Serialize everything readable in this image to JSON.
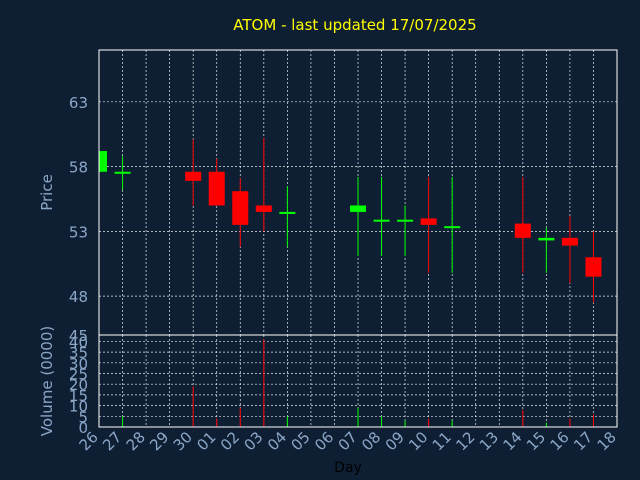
{
  "chart_data": {
    "type": "candlestick",
    "title": "ATOM - last updated 17/07/2025",
    "xlabel": "Day",
    "price_panel": {
      "ylabel": "Price",
      "yticks": [
        45,
        48,
        53,
        58,
        63
      ],
      "ylim": [
        45,
        67
      ],
      "grid": true
    },
    "volume_panel": {
      "ylabel": "Volume (0000)",
      "yticks": [
        0,
        5,
        10,
        15,
        20,
        25,
        30,
        35,
        40
      ],
      "ylim": [
        0,
        43
      ],
      "grid": true
    },
    "x_tick_labels": [
      "26",
      "27",
      "28",
      "29",
      "30",
      "01",
      "02",
      "03",
      "04",
      "05",
      "06",
      "07",
      "08",
      "09",
      "10",
      "11",
      "12",
      "13",
      "14",
      "15",
      "16",
      "17",
      "18"
    ],
    "candles": [
      {
        "day": "26",
        "open": 57.6,
        "close": 59.2,
        "high": 59.2,
        "low": 57.6,
        "volume": 0
      },
      {
        "day": "27",
        "open": 57.5,
        "close": 57.6,
        "high": 58.8,
        "low": 56.2,
        "volume": 5
      },
      {
        "day": "30",
        "open": 57.6,
        "close": 56.9,
        "high": 60.1,
        "low": 55.0,
        "volume": 19
      },
      {
        "day": "01",
        "open": 57.6,
        "close": 55.0,
        "high": 58.6,
        "low": 55.0,
        "volume": 4
      },
      {
        "day": "02",
        "open": 56.1,
        "close": 53.5,
        "high": 57.1,
        "low": 51.8,
        "volume": 9
      },
      {
        "day": "03",
        "open": 55.0,
        "close": 54.5,
        "high": 60.2,
        "low": 53.0,
        "volume": 41
      },
      {
        "day": "04",
        "open": 54.4,
        "close": 54.5,
        "high": 56.5,
        "low": 51.8,
        "volume": 5
      },
      {
        "day": "07",
        "open": 54.5,
        "close": 55.0,
        "high": 57.2,
        "low": 51.1,
        "volume": 9
      },
      {
        "day": "08",
        "open": 53.8,
        "close": 53.9,
        "high": 57.2,
        "low": 51.1,
        "volume": 5
      },
      {
        "day": "09",
        "open": 53.8,
        "close": 53.9,
        "high": 55.0,
        "low": 51.1,
        "volume": 3
      },
      {
        "day": "10",
        "open": 54.0,
        "close": 53.5,
        "high": 57.2,
        "low": 49.8,
        "volume": 4
      },
      {
        "day": "11",
        "open": 53.3,
        "close": 53.4,
        "high": 57.2,
        "low": 49.8,
        "volume": 3
      },
      {
        "day": "14",
        "open": 53.6,
        "close": 52.5,
        "high": 57.2,
        "low": 49.8,
        "volume": 8
      },
      {
        "day": "15",
        "open": 52.3,
        "close": 52.5,
        "high": 53.3,
        "low": 49.8,
        "volume": 2
      },
      {
        "day": "16",
        "open": 52.5,
        "close": 51.9,
        "high": 54.2,
        "low": 49.0,
        "volume": 4
      },
      {
        "day": "17",
        "open": 51.0,
        "close": 49.5,
        "high": 53.0,
        "low": 47.5,
        "volume": 6
      }
    ]
  },
  "colors": {
    "background": "#0f1f33",
    "up": "#00ff00",
    "down": "#ff0000",
    "grid": "#ffffff",
    "title": "#ffff00",
    "tick": "#8ba7c8"
  }
}
